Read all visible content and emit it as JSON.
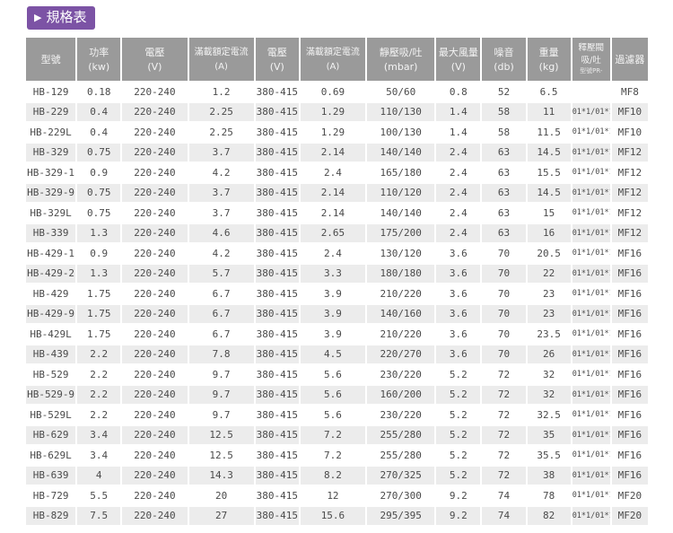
{
  "title": {
    "arrow_icon": "▶",
    "label": "規格表"
  },
  "colors": {
    "accent": "#7c53a5",
    "header_bg": "#9a9a9a",
    "row_stripe": "#ececec",
    "body_text": "#4a4a4a"
  },
  "table": {
    "columns": [
      {
        "label": "型號",
        "unit": "",
        "sub": ""
      },
      {
        "label": "功率",
        "unit": "(kw)",
        "sub": ""
      },
      {
        "label": "電壓",
        "unit": "(V)",
        "sub": ""
      },
      {
        "label": "滿載額定電流",
        "unit": "(A)",
        "sub": ""
      },
      {
        "label": "電壓",
        "unit": "(V)",
        "sub": ""
      },
      {
        "label": "滿載額定電流",
        "unit": "(A)",
        "sub": ""
      },
      {
        "label": "靜壓吸/吐",
        "unit": "(mbar)",
        "sub": ""
      },
      {
        "label": "最大風量",
        "unit": "(V)",
        "sub": ""
      },
      {
        "label": "噪音",
        "unit": "(db)",
        "sub": ""
      },
      {
        "label": "重量",
        "unit": "(kg)",
        "sub": ""
      },
      {
        "label": "釋壓閥",
        "unit": "吸/吐",
        "sub": "型號PR-"
      },
      {
        "label": "過濾器",
        "unit": "",
        "sub": ""
      }
    ],
    "rows": [
      [
        "HB-129",
        "0.18",
        "220-240",
        "1.2",
        "380-415",
        "0.69",
        "50/60",
        "0.8",
        "52",
        "6.5",
        "",
        "MF8"
      ],
      [
        "HB-229",
        "0.4",
        "220-240",
        "2.25",
        "380-415",
        "1.29",
        "110/130",
        "1.4",
        "58",
        "11",
        "01*1/01*1",
        "MF10"
      ],
      [
        "HB-229L",
        "0.4",
        "220-240",
        "2.25",
        "380-415",
        "1.29",
        "100/130",
        "1.4",
        "58",
        "11.5",
        "01*1/01*1",
        "MF10"
      ],
      [
        "HB-329",
        "0.75",
        "220-240",
        "3.7",
        "380-415",
        "2.14",
        "140/140",
        "2.4",
        "63",
        "14.5",
        "01*1/01*1",
        "MF12"
      ],
      [
        "HB-329-1",
        "0.9",
        "220-240",
        "4.2",
        "380-415",
        "2.4",
        "165/180",
        "2.4",
        "63",
        "15.5",
        "01*1/01*1",
        "MF12"
      ],
      [
        "HB-329-9",
        "0.75",
        "220-240",
        "3.7",
        "380-415",
        "2.14",
        "110/120",
        "2.4",
        "63",
        "14.5",
        "01*1/01*1",
        "MF12"
      ],
      [
        "HB-329L",
        "0.75",
        "220-240",
        "3.7",
        "380-415",
        "2.14",
        "140/140",
        "2.4",
        "63",
        "15",
        "01*1/01*1",
        "MF12"
      ],
      [
        "HB-339",
        "1.3",
        "220-240",
        "4.6",
        "380-415",
        "2.65",
        "175/200",
        "2.4",
        "63",
        "16",
        "01*1/01*1",
        "MF12"
      ],
      [
        "HB-429-1",
        "0.9",
        "220-240",
        "4.2",
        "380-415",
        "2.4",
        "130/120",
        "3.6",
        "70",
        "20.5",
        "01*1/01*1",
        "MF16"
      ],
      [
        "HB-429-2",
        "1.3",
        "220-240",
        "5.7",
        "380-415",
        "3.3",
        "180/180",
        "3.6",
        "70",
        "22",
        "01*1/01*1",
        "MF16"
      ],
      [
        "HB-429",
        "1.75",
        "220-240",
        "6.7",
        "380-415",
        "3.9",
        "210/220",
        "3.6",
        "70",
        "23",
        "01*1/01*1",
        "MF16"
      ],
      [
        "HB-429-9",
        "1.75",
        "220-240",
        "6.7",
        "380-415",
        "3.9",
        "140/160",
        "3.6",
        "70",
        "23",
        "01*1/01*1",
        "MF16"
      ],
      [
        "HB-429L",
        "1.75",
        "220-240",
        "6.7",
        "380-415",
        "3.9",
        "210/220",
        "3.6",
        "70",
        "23.5",
        "01*1/01*1",
        "MF16"
      ],
      [
        "HB-439",
        "2.2",
        "220-240",
        "7.8",
        "380-415",
        "4.5",
        "220/270",
        "3.6",
        "70",
        "26",
        "01*1/01*1",
        "MF16"
      ],
      [
        "HB-529",
        "2.2",
        "220-240",
        "9.7",
        "380-415",
        "5.6",
        "230/220",
        "5.2",
        "72",
        "32",
        "01*1/01*1",
        "MF16"
      ],
      [
        "HB-529-9",
        "2.2",
        "220-240",
        "9.7",
        "380-415",
        "5.6",
        "160/200",
        "5.2",
        "72",
        "32",
        "01*1/01*1",
        "MF16"
      ],
      [
        "HB-529L",
        "2.2",
        "220-240",
        "9.7",
        "380-415",
        "5.6",
        "230/220",
        "5.2",
        "72",
        "32.5",
        "01*1/01*1",
        "MF16"
      ],
      [
        "HB-629",
        "3.4",
        "220-240",
        "12.5",
        "380-415",
        "7.2",
        "255/280",
        "5.2",
        "72",
        "35",
        "01*1/01*1",
        "MF16"
      ],
      [
        "HB-629L",
        "3.4",
        "220-240",
        "12.5",
        "380-415",
        "7.2",
        "255/280",
        "5.2",
        "72",
        "35.5",
        "01*1/01*1",
        "MF16"
      ],
      [
        "HB-639",
        "4",
        "220-240",
        "14.3",
        "380-415",
        "8.2",
        "270/325",
        "5.2",
        "72",
        "38",
        "01*1/01*1",
        "MF16"
      ],
      [
        "HB-729",
        "5.5",
        "220-240",
        "20",
        "380-415",
        "12",
        "270/300",
        "9.2",
        "74",
        "78",
        "01*1/01*1",
        "MF20"
      ],
      [
        "HB-829",
        "7.5",
        "220-240",
        "27",
        "380-415",
        "15.6",
        "295/395",
        "9.2",
        "74",
        "82",
        "01*1/01*1",
        "MF20"
      ]
    ]
  }
}
